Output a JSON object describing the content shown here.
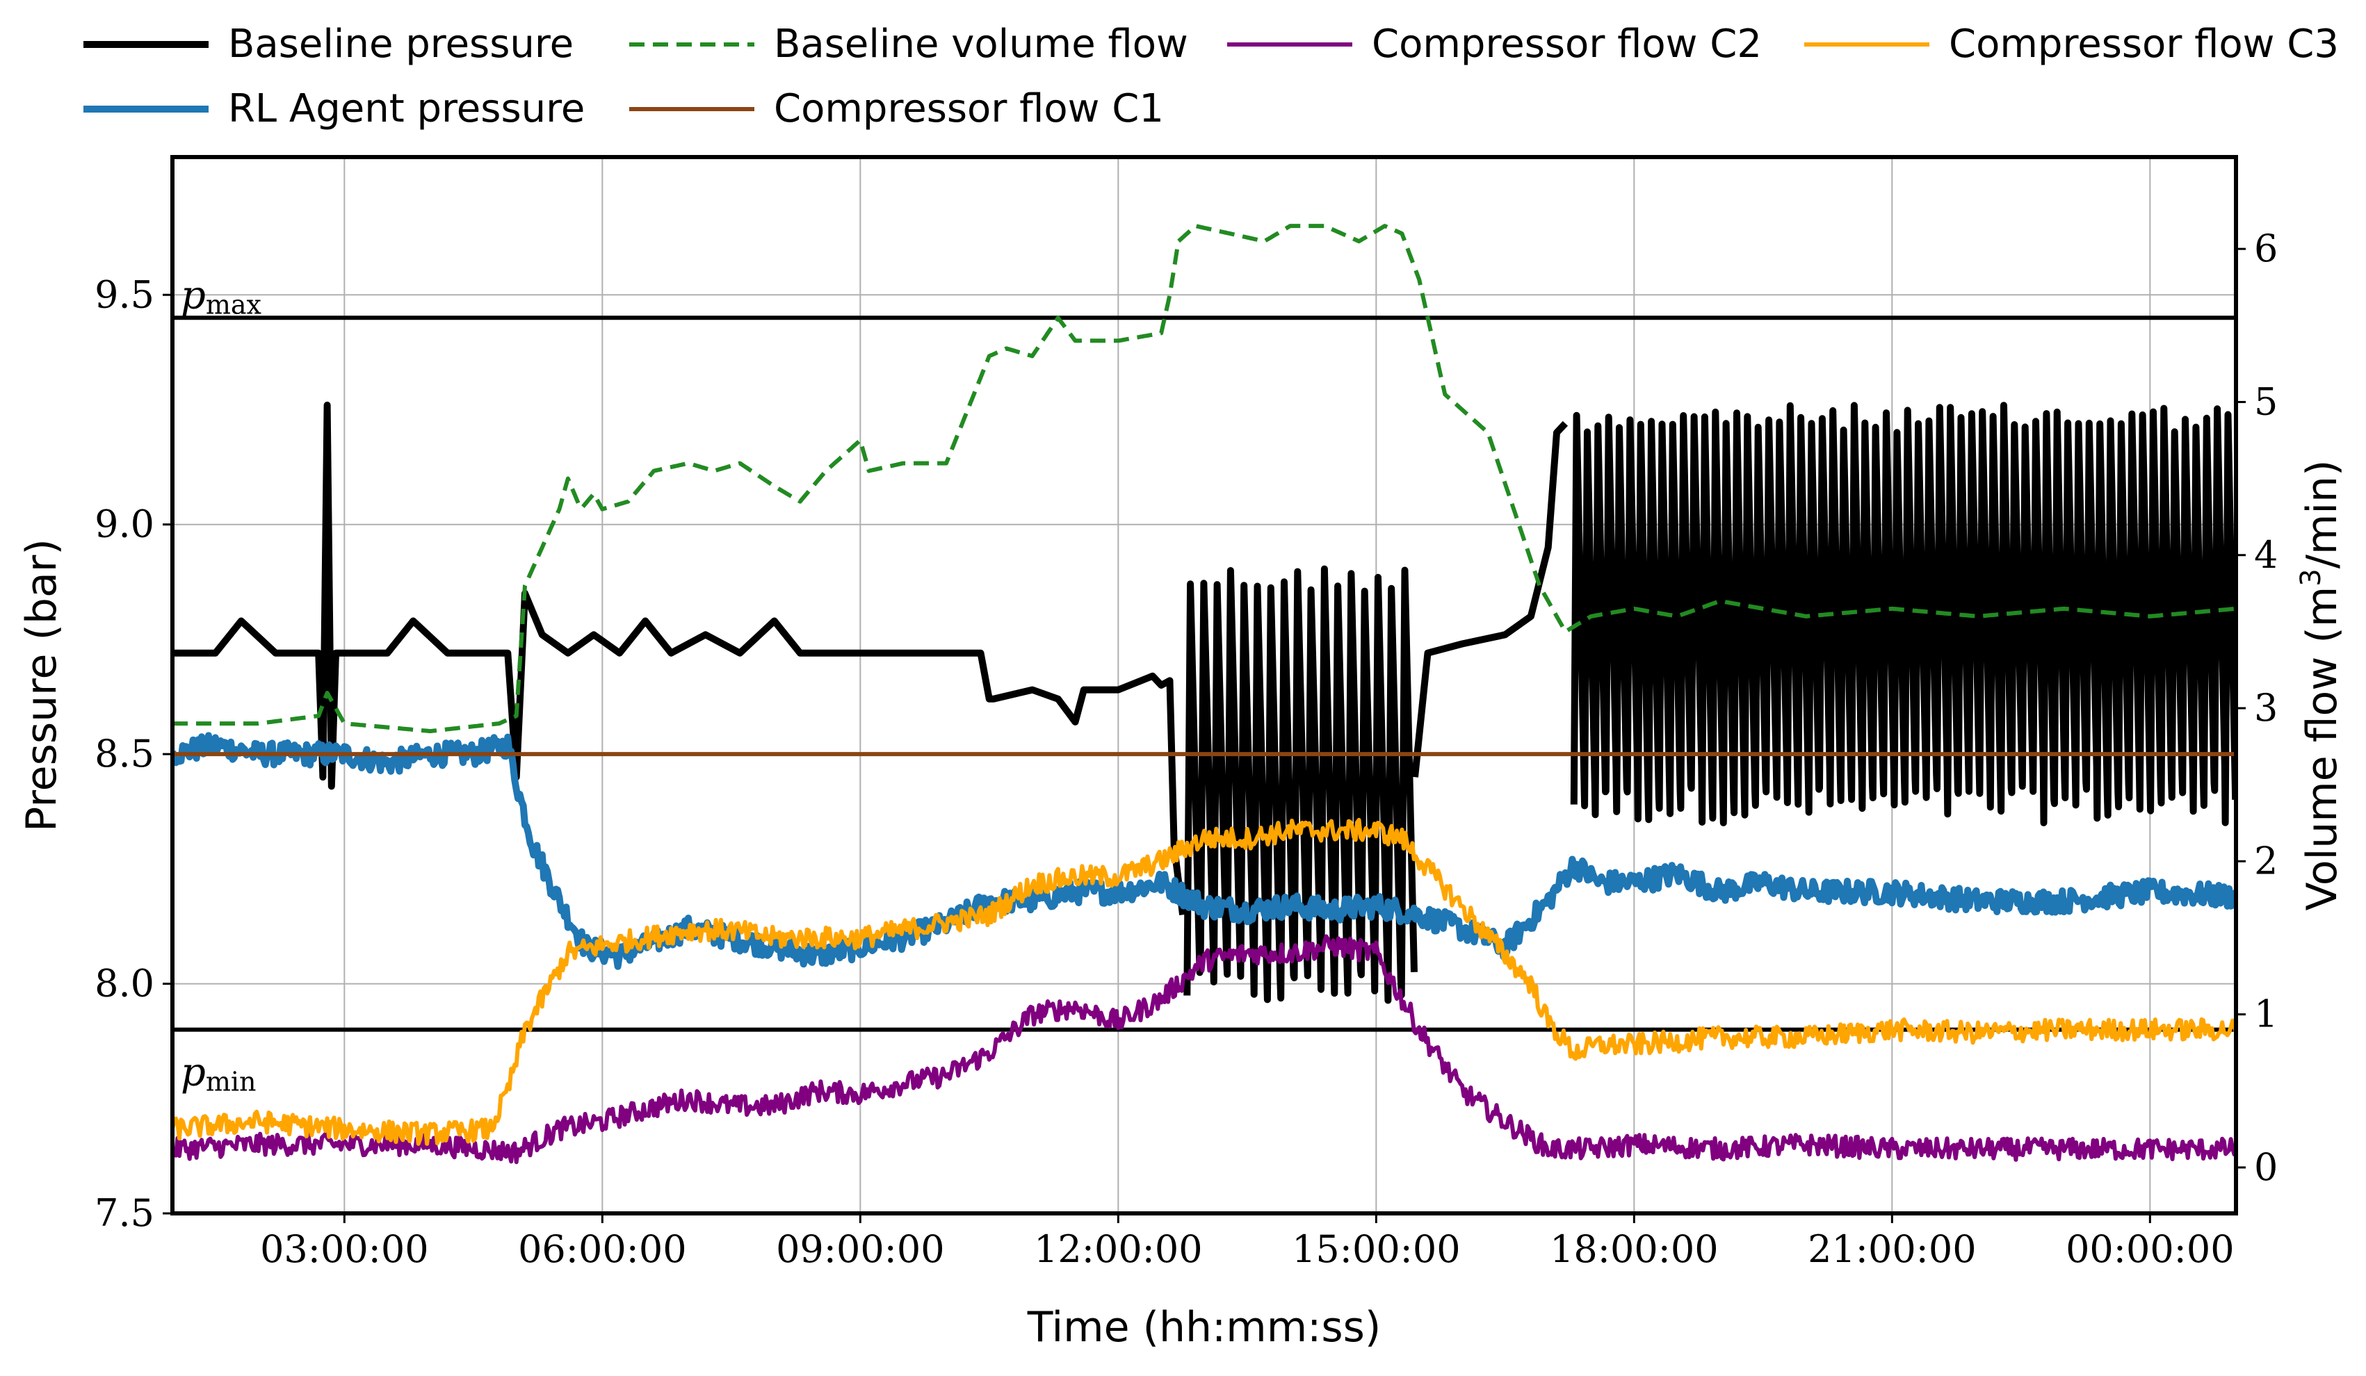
{
  "chart_data": {
    "type": "line",
    "xlabel": "Time (hh:mm:ss)",
    "ylabel": "Pressure (bar)",
    "ylabel_right_prefix": "Volume flow (m",
    "ylabel_right_sup": "3",
    "ylabel_right_suffix": "/min)",
    "x_unit": "hours",
    "xlim": [
      1.0,
      25.0
    ],
    "ylim": [
      7.5,
      9.8
    ],
    "ylim_right": [
      -0.3,
      6.6
    ],
    "grid": true,
    "legend_position": "top, above plot",
    "x_tick_positions": [
      3,
      6,
      9,
      12,
      15,
      18,
      21,
      24
    ],
    "x_tick_labels": [
      "03:00:00",
      "06:00:00",
      "09:00:00",
      "12:00:00",
      "15:00:00",
      "18:00:00",
      "21:00:00",
      "00:00:00"
    ],
    "y_ticks": [
      7.5,
      8.0,
      8.5,
      9.0,
      9.5
    ],
    "y_tick_labels": [
      "7.5",
      "8.0",
      "8.5",
      "9.0",
      "9.5"
    ],
    "y_ticks_right": [
      0,
      1,
      2,
      3,
      4,
      5,
      6
    ],
    "y_tick_labels_right": [
      "0",
      "1",
      "2",
      "3",
      "4",
      "5",
      "6"
    ],
    "reference_lines": [
      {
        "label_main": "p",
        "label_sub": "max",
        "y": 9.45
      },
      {
        "label_main": "p",
        "label_sub": "min",
        "y": 7.9
      }
    ],
    "series": [
      {
        "name": "Baseline pressure",
        "axis": "left",
        "color": "#000000",
        "style": "solid",
        "x": [
          1.0,
          1.5,
          1.8,
          2.2,
          2.5,
          2.7,
          2.75,
          2.8,
          2.85,
          2.9,
          3.0,
          3.5,
          3.8,
          4.2,
          4.5,
          4.9,
          5.0,
          5.1,
          5.3,
          5.6,
          5.9,
          6.2,
          6.5,
          6.8,
          7.2,
          7.6,
          8.0,
          8.3,
          8.6,
          9.0,
          9.5,
          10.0,
          10.4,
          10.5,
          10.55,
          11.0,
          11.3,
          11.5,
          11.6,
          12.0,
          12.4,
          12.5,
          12.6,
          12.65,
          12.75
        ],
        "y": [
          8.72,
          8.72,
          8.79,
          8.72,
          8.72,
          8.72,
          8.45,
          9.26,
          8.43,
          8.72,
          8.72,
          8.72,
          8.79,
          8.72,
          8.72,
          8.72,
          8.45,
          8.85,
          8.76,
          8.72,
          8.76,
          8.72,
          8.79,
          8.72,
          8.76,
          8.72,
          8.79,
          8.72,
          8.72,
          8.72,
          8.72,
          8.72,
          8.72,
          8.62,
          8.62,
          8.64,
          8.62,
          8.57,
          8.64,
          8.64,
          8.67,
          8.65,
          8.66,
          8.3,
          8.15
        ],
        "regions": [
          {
            "x_start": 12.8,
            "x_end": 15.45,
            "low": 7.95,
            "high": 8.91,
            "cycles": 17,
            "shape": "sawtooth"
          },
          {
            "x_start": 17.3,
            "x_end": 25.0,
            "low": 8.35,
            "high": 9.26,
            "cycles": 62,
            "shape": "sawtooth"
          }
        ],
        "segments_after": {
          "x": [
            15.45,
            15.6,
            16.0,
            16.5,
            16.8,
            17.0,
            17.1,
            17.2
          ],
          "y": [
            8.45,
            8.72,
            8.74,
            8.76,
            8.8,
            8.95,
            9.2,
            9.22
          ]
        }
      },
      {
        "name": "RL Agent pressure",
        "axis": "left",
        "color": "#1f77b4",
        "style": "solid",
        "x": [
          1.0,
          1.5,
          2.0,
          2.5,
          3.0,
          3.5,
          4.0,
          4.5,
          4.9,
          5.05,
          5.2,
          5.5,
          5.8,
          6.2,
          6.6,
          7.0,
          7.5,
          8.0,
          8.5,
          9.0,
          9.5,
          10.0,
          10.5,
          11.0,
          11.5,
          12.0,
          12.5,
          13.0,
          13.5,
          14.0,
          14.5,
          15.0,
          15.5,
          16.0,
          16.5,
          17.0,
          17.3,
          17.6,
          18.0,
          18.5,
          19.0,
          19.5,
          20.0,
          21.0,
          22.0,
          23.0,
          24.0,
          25.0
        ],
        "y": [
          8.5,
          8.52,
          8.5,
          8.5,
          8.5,
          8.48,
          8.5,
          8.5,
          8.52,
          8.4,
          8.3,
          8.18,
          8.08,
          8.06,
          8.09,
          8.12,
          8.1,
          8.08,
          8.06,
          8.08,
          8.1,
          8.13,
          8.18,
          8.18,
          8.2,
          8.2,
          8.22,
          8.17,
          8.16,
          8.17,
          8.16,
          8.17,
          8.15,
          8.12,
          8.08,
          8.18,
          8.26,
          8.22,
          8.22,
          8.24,
          8.2,
          8.22,
          8.2,
          8.2,
          8.18,
          8.18,
          8.2,
          8.19
        ]
      },
      {
        "name": "Baseline volume flow",
        "axis": "right",
        "color": "#228b22",
        "style": "dashed",
        "x": [
          1.0,
          2.0,
          2.7,
          2.8,
          3.0,
          4.0,
          4.8,
          5.0,
          5.1,
          5.3,
          5.5,
          5.6,
          5.75,
          5.9,
          6.0,
          6.3,
          6.6,
          7.0,
          7.3,
          7.6,
          8.0,
          8.3,
          8.6,
          9.0,
          9.1,
          9.5,
          10.0,
          10.5,
          10.7,
          11.0,
          11.3,
          11.5,
          11.7,
          12.0,
          12.5,
          12.6,
          12.7,
          12.9,
          13.3,
          13.7,
          14.0,
          14.4,
          14.8,
          15.1,
          15.3,
          15.5,
          15.8,
          16.0,
          16.3,
          16.6,
          16.9,
          17.2,
          17.5,
          18.0,
          18.5,
          19.0,
          20.0,
          21.0,
          22.0,
          23.0,
          24.0,
          25.0
        ],
        "y": [
          2.9,
          2.9,
          2.95,
          3.1,
          2.9,
          2.85,
          2.9,
          2.95,
          3.8,
          4.05,
          4.3,
          4.5,
          4.3,
          4.4,
          4.3,
          4.35,
          4.55,
          4.6,
          4.55,
          4.6,
          4.45,
          4.35,
          4.55,
          4.75,
          4.55,
          4.6,
          4.6,
          5.3,
          5.35,
          5.3,
          5.55,
          5.4,
          5.4,
          5.4,
          5.45,
          5.7,
          6.05,
          6.15,
          6.1,
          6.05,
          6.15,
          6.15,
          6.05,
          6.15,
          6.1,
          5.8,
          5.05,
          4.95,
          4.8,
          4.3,
          3.8,
          3.5,
          3.6,
          3.65,
          3.6,
          3.7,
          3.6,
          3.65,
          3.6,
          3.65,
          3.6,
          3.65
        ]
      },
      {
        "name": "Compressor flow C1",
        "axis": "left",
        "color": "#8b4513",
        "style": "solid",
        "x": [
          1.0,
          25.0
        ],
        "y": [
          8.5,
          8.5
        ]
      },
      {
        "name": "Compressor flow C2",
        "axis": "right",
        "color": "#800080",
        "style": "solid",
        "x": [
          1.0,
          2.0,
          3.0,
          4.0,
          5.0,
          5.5,
          6.0,
          6.5,
          7.0,
          7.5,
          8.0,
          8.5,
          9.0,
          9.5,
          10.0,
          10.5,
          11.0,
          11.5,
          12.0,
          12.5,
          13.0,
          13.5,
          14.0,
          14.5,
          15.0,
          15.5,
          16.0,
          16.5,
          17.0,
          17.5,
          18.0,
          19.0,
          20.0,
          21.0,
          22.0,
          23.0,
          24.0,
          25.0
        ],
        "y": [
          0.12,
          0.15,
          0.15,
          0.15,
          0.1,
          0.25,
          0.3,
          0.38,
          0.45,
          0.4,
          0.4,
          0.5,
          0.48,
          0.55,
          0.6,
          0.75,
          1.0,
          1.05,
          0.95,
          1.1,
          1.35,
          1.4,
          1.4,
          1.45,
          1.4,
          0.9,
          0.5,
          0.3,
          0.12,
          0.12,
          0.15,
          0.12,
          0.15,
          0.12,
          0.12,
          0.12,
          0.12,
          0.12
        ]
      },
      {
        "name": "Compressor flow C3",
        "axis": "right",
        "color": "#ffa500",
        "style": "solid",
        "x": [
          1.0,
          2.0,
          3.0,
          4.0,
          4.7,
          4.9,
          5.1,
          5.3,
          5.6,
          6.0,
          6.5,
          7.0,
          7.5,
          8.0,
          8.5,
          9.0,
          9.5,
          10.0,
          10.5,
          11.0,
          11.5,
          12.0,
          12.5,
          13.0,
          13.5,
          14.0,
          14.5,
          15.0,
          15.3,
          15.6,
          16.0,
          16.4,
          16.8,
          17.0,
          17.3,
          17.6,
          18.0,
          19.0,
          20.0,
          21.0,
          22.0,
          23.0,
          24.0,
          25.0
        ],
        "y": [
          0.25,
          0.3,
          0.25,
          0.22,
          0.25,
          0.5,
          0.9,
          1.1,
          1.4,
          1.45,
          1.5,
          1.55,
          1.55,
          1.5,
          1.5,
          1.5,
          1.55,
          1.6,
          1.65,
          1.85,
          1.9,
          1.9,
          2.0,
          2.15,
          2.15,
          2.2,
          2.2,
          2.2,
          2.15,
          1.95,
          1.7,
          1.45,
          1.2,
          0.95,
          0.75,
          0.8,
          0.8,
          0.85,
          0.85,
          0.9,
          0.88,
          0.9,
          0.9,
          0.9
        ]
      }
    ]
  }
}
